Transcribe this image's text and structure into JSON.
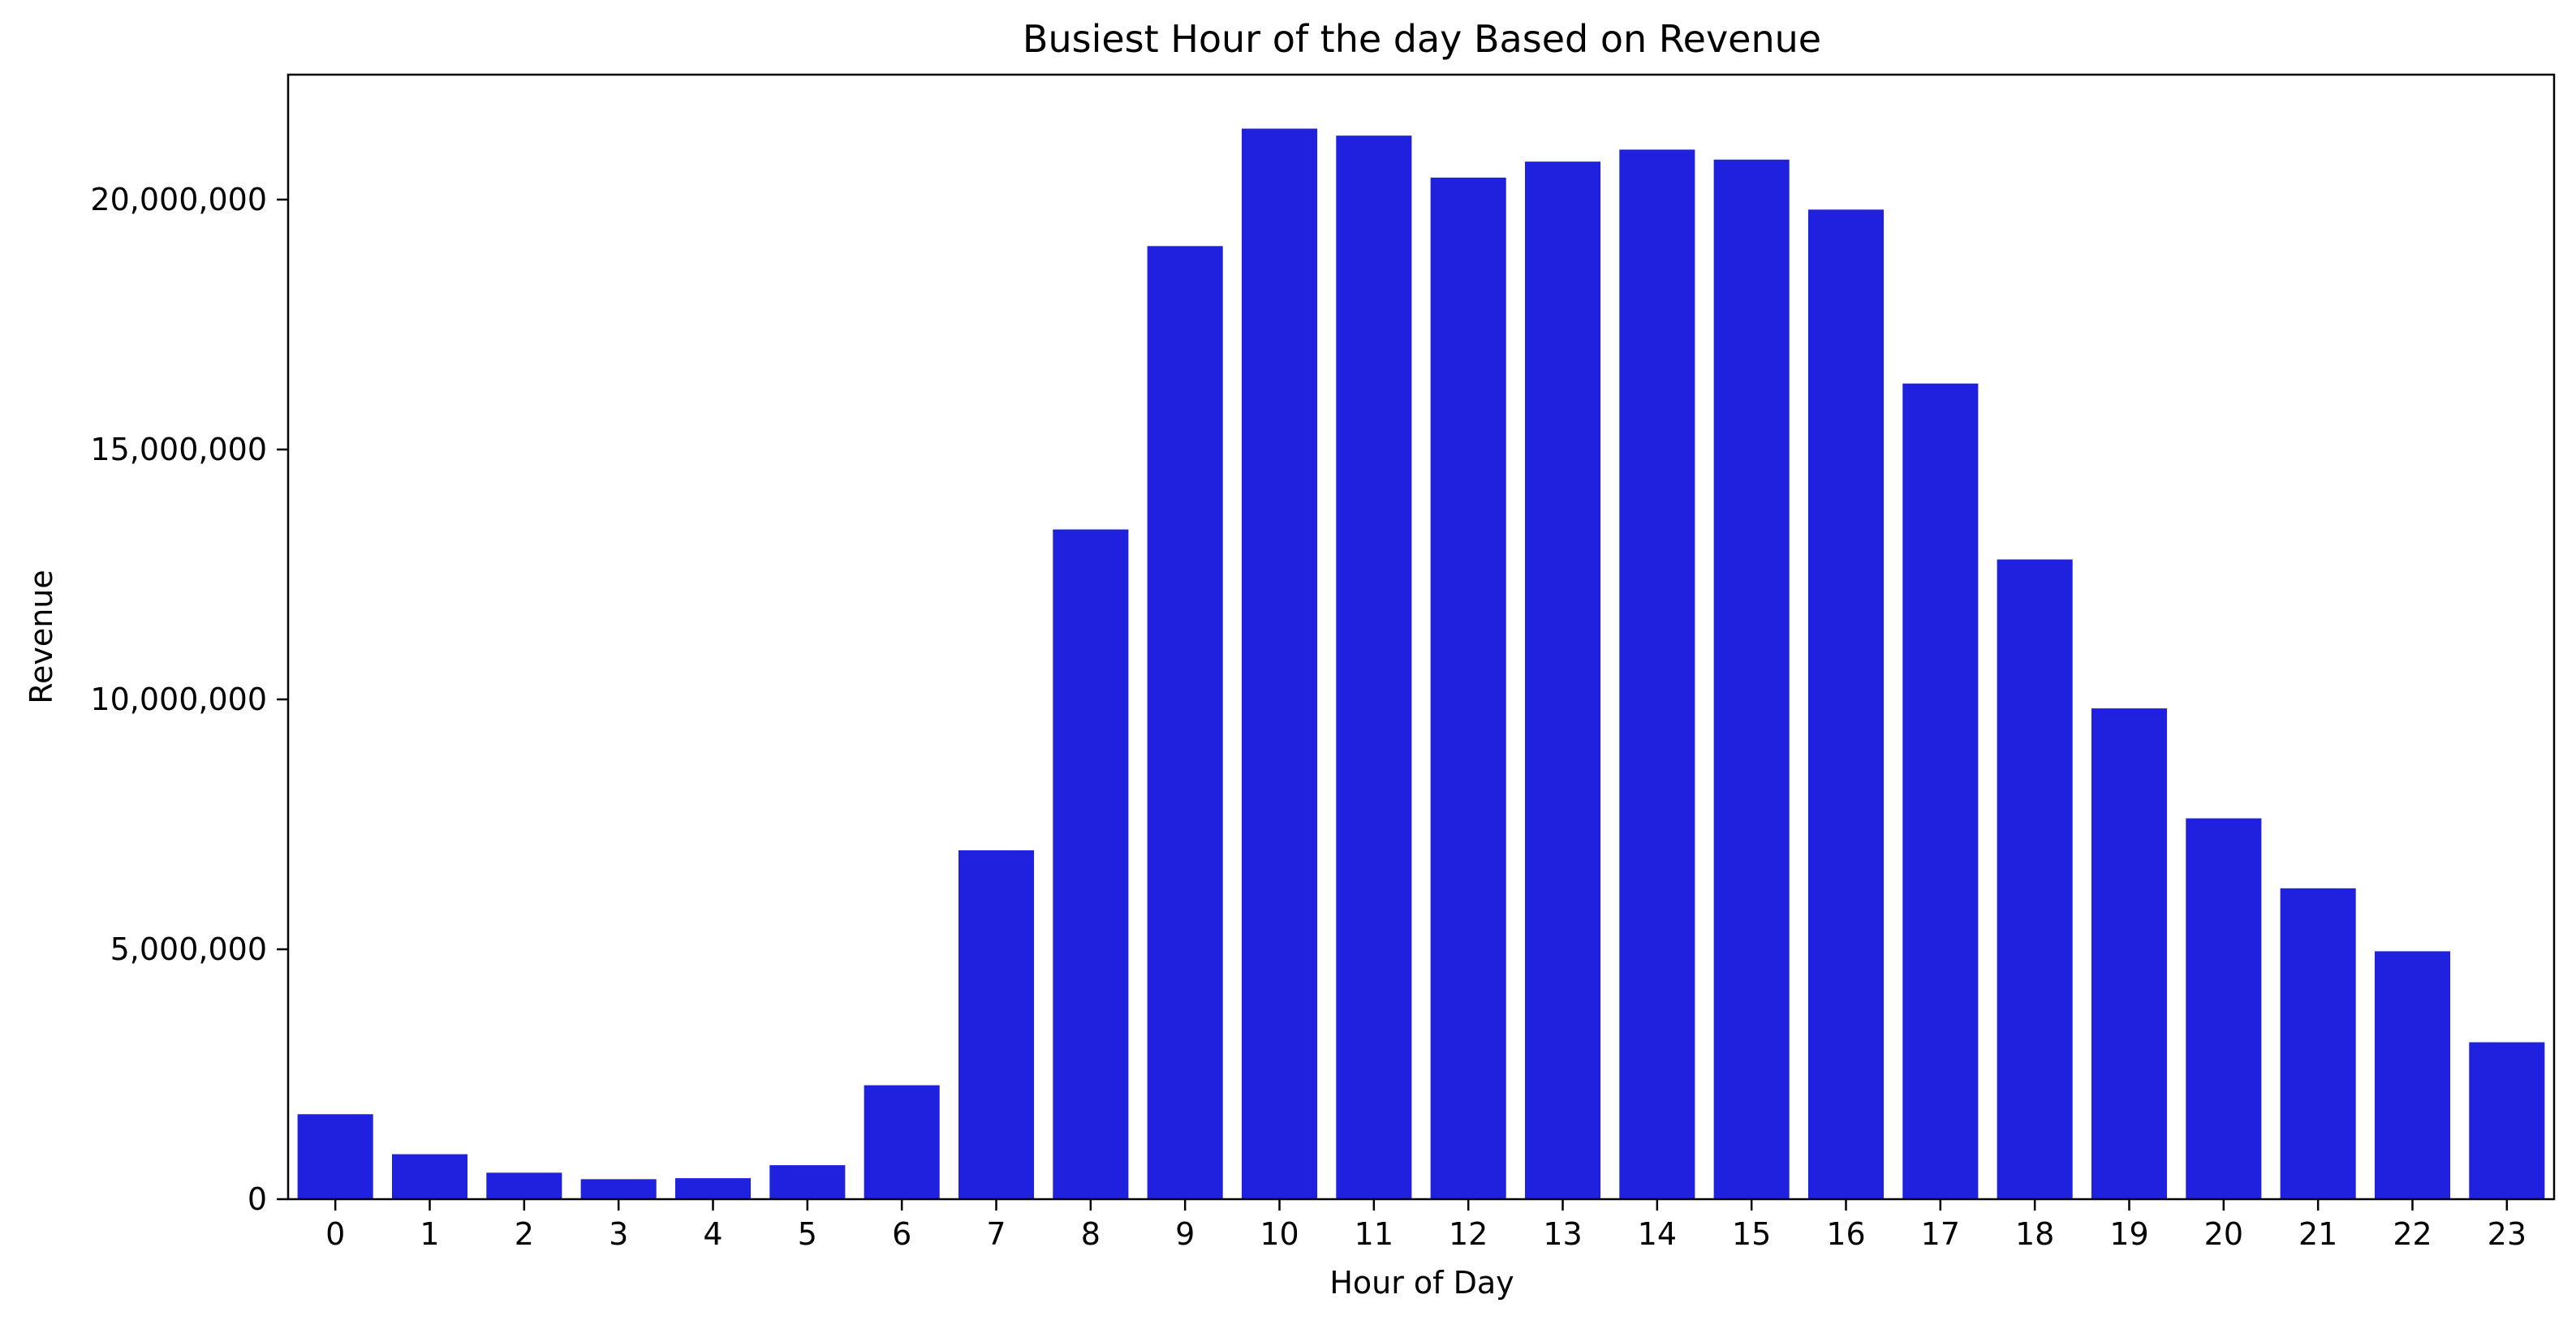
{
  "chart_data": {
    "type": "bar",
    "title": "Busiest Hour of the day Based on Revenue",
    "xlabel": "Hour of Day",
    "ylabel": "Revenue",
    "categories": [
      "0",
      "1",
      "2",
      "3",
      "4",
      "5",
      "6",
      "7",
      "8",
      "9",
      "10",
      "11",
      "12",
      "13",
      "14",
      "15",
      "16",
      "17",
      "18",
      "19",
      "20",
      "21",
      "22",
      "23"
    ],
    "values": [
      1700000,
      900000,
      530000,
      400000,
      420000,
      680000,
      2280000,
      6980000,
      13400000,
      19070000,
      21420000,
      21280000,
      20440000,
      20760000,
      21000000,
      20800000,
      19800000,
      16320000,
      12800000,
      9820000,
      7620000,
      6220000,
      4960000,
      3140000
    ],
    "ylim": [
      0,
      22500000
    ],
    "yticks": [
      0,
      5000000,
      10000000,
      15000000,
      20000000
    ],
    "ytick_labels": [
      "0",
      "5,000,000",
      "10,000,000",
      "15,000,000",
      "20,000,000"
    ],
    "bar_color": "#2020df",
    "grid": false,
    "legend": false
  }
}
